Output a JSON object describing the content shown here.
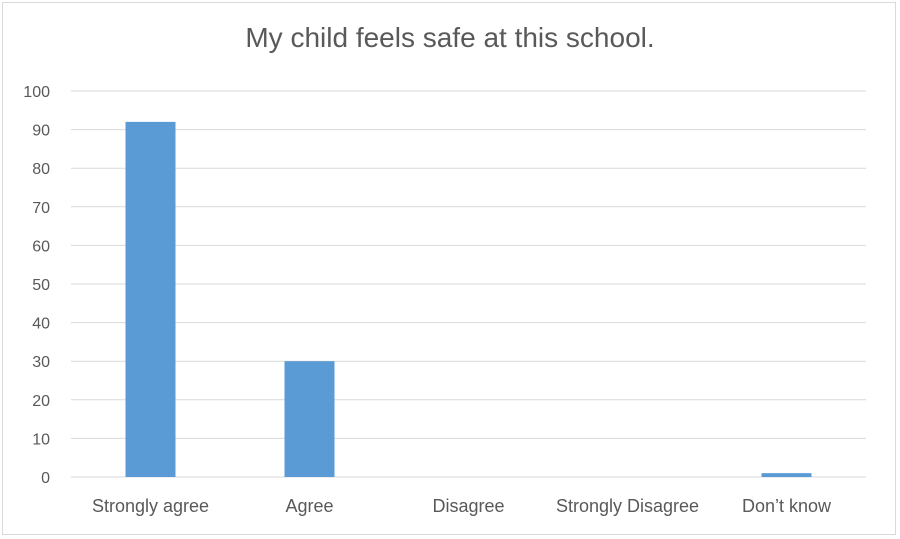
{
  "chart_data": {
    "type": "bar",
    "title": "My child feels safe at this school.",
    "categories": [
      "Strongly agree",
      "Agree",
      "Disagree",
      "Strongly Disagree",
      "Don’t know"
    ],
    "values": [
      92,
      30,
      0,
      0,
      1
    ],
    "ylim": [
      0,
      100
    ],
    "yticks": [
      0,
      10,
      20,
      30,
      40,
      50,
      60,
      70,
      80,
      90,
      100
    ],
    "grid": true,
    "legend": "none",
    "bar_color": "#5b9bd5",
    "grid_color": "#d9d9d9",
    "text_color": "#595959"
  }
}
